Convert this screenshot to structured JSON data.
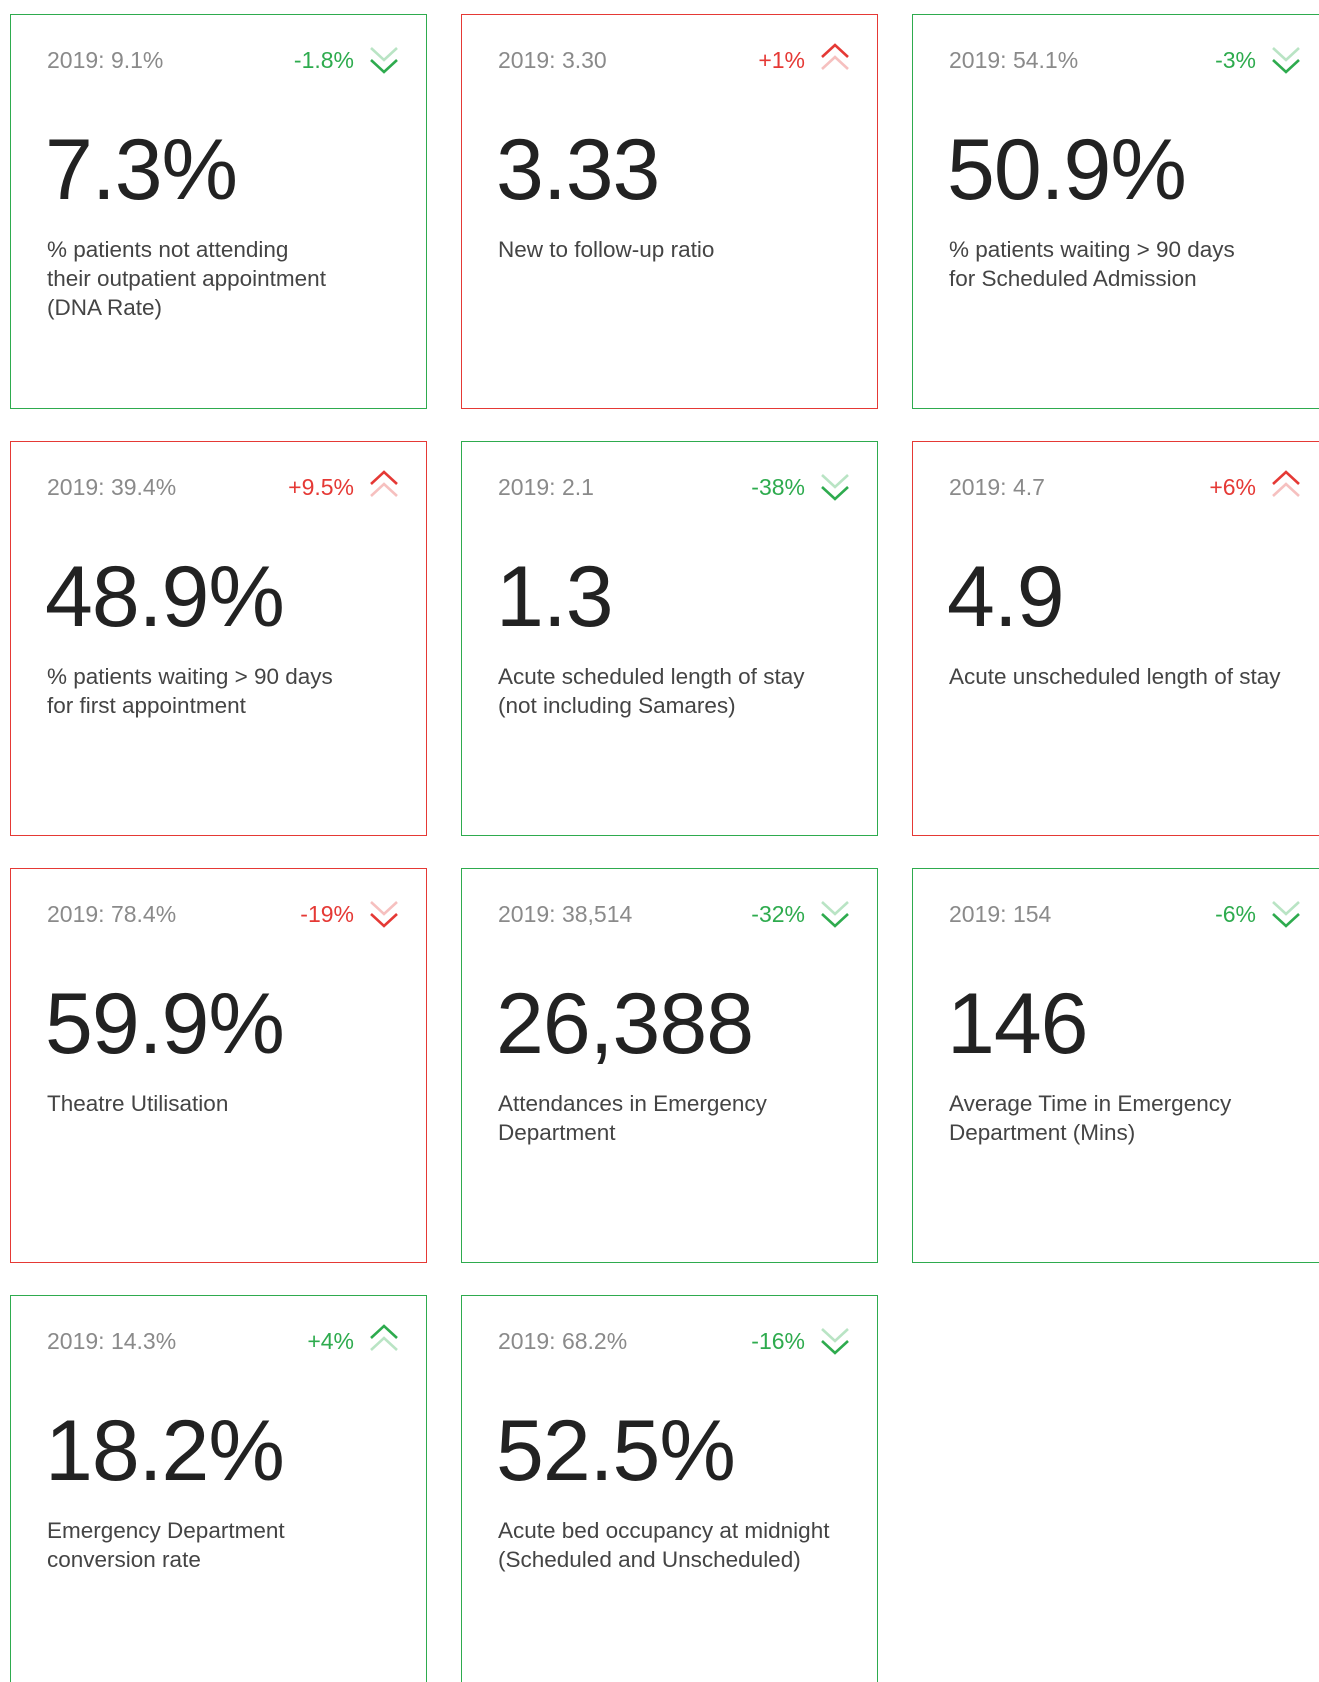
{
  "cards": [
    {
      "baseline": "2019: 9.1%",
      "change": "-1.8%",
      "value": "7.3%",
      "label_lines": [
        "% patients not attending",
        "their outpatient appointment",
        "(DNA Rate)"
      ],
      "status": "good",
      "direction": "down"
    },
    {
      "baseline": "2019: 3.30",
      "change": "+1%",
      "value": "3.33",
      "label_lines": [
        "New to follow-up ratio"
      ],
      "status": "bad",
      "direction": "up"
    },
    {
      "baseline": "2019: 54.1%",
      "change": "-3%",
      "value": "50.9%",
      "label_lines": [
        "% patients waiting > 90 days",
        "for Scheduled Admission"
      ],
      "status": "good",
      "direction": "down"
    },
    {
      "baseline": "2019: 39.4%",
      "change": "+9.5%",
      "value": "48.9%",
      "label_lines": [
        "% patients waiting > 90 days",
        "for first appointment"
      ],
      "status": "bad",
      "direction": "up"
    },
    {
      "baseline": "2019: 2.1",
      "change": "-38%",
      "value": "1.3",
      "label_lines": [
        "Acute scheduled length of stay",
        "(not including Samares)"
      ],
      "status": "good",
      "direction": "down"
    },
    {
      "baseline": "2019: 4.7",
      "change": "+6%",
      "value": "4.9",
      "label_lines": [
        "Acute unscheduled length of stay"
      ],
      "status": "bad",
      "direction": "up"
    },
    {
      "baseline": "2019: 78.4%",
      "change": "-19%",
      "value": "59.9%",
      "label_lines": [
        "Theatre Utilisation"
      ],
      "status": "bad",
      "direction": "down"
    },
    {
      "baseline": "2019: 38,514",
      "change": "-32%",
      "value": "26,388",
      "label_lines": [
        "Attendances in Emergency",
        "Department"
      ],
      "status": "good",
      "direction": "down"
    },
    {
      "baseline": "2019: 154",
      "change": "-6%",
      "value": "146",
      "label_lines": [
        "Average Time in Emergency",
        "Department (Mins)"
      ],
      "status": "good",
      "direction": "down"
    },
    {
      "baseline": "2019: 14.3%",
      "change": "+4%",
      "value": "18.2%",
      "label_lines": [
        "Emergency Department",
        "conversion rate"
      ],
      "status": "good",
      "direction": "up"
    },
    {
      "baseline": "2019: 68.2%",
      "change": "-16%",
      "value": "52.5%",
      "label_lines": [
        "Acute bed occupancy at midnight",
        "(Scheduled and Unscheduled)"
      ],
      "status": "good",
      "direction": "down"
    }
  ]
}
